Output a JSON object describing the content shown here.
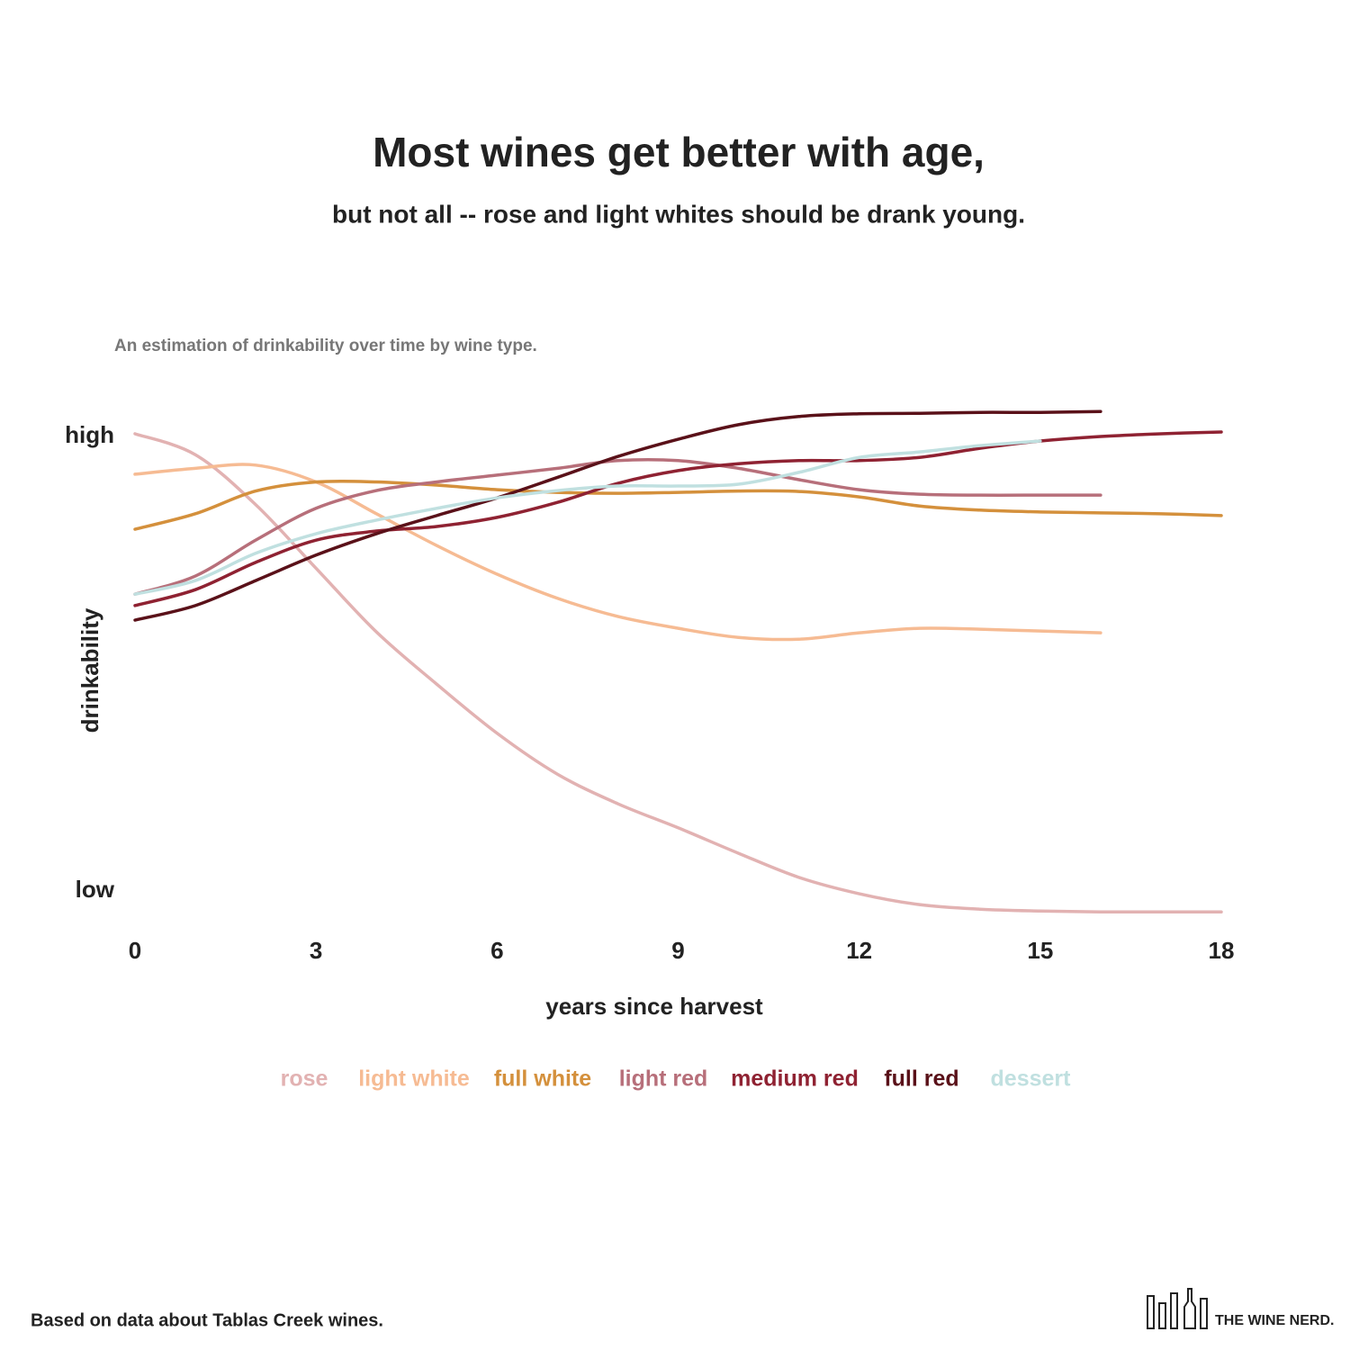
{
  "chart_data": {
    "type": "line",
    "title": "Most wines get better with age,",
    "subtitle": "but not all -- rose and light whites should be drank young.",
    "note": "An estimation of drinkability over time by wine type.",
    "xlabel": "years since harvest",
    "ylabel": "drinkability",
    "x": [
      0,
      1,
      2,
      3,
      4,
      5,
      6,
      7,
      8,
      9,
      10,
      11,
      12,
      13,
      14,
      15,
      16,
      17,
      18
    ],
    "xlim": [
      0,
      18
    ],
    "xticks": [
      0,
      3,
      6,
      9,
      12,
      15,
      18
    ],
    "ylim": [
      -0.8,
      10.8
    ],
    "yticks": [
      {
        "value": 0,
        "label": "low"
      },
      {
        "value": 10,
        "label": "high"
      }
    ],
    "grid": false,
    "legend": "bottom",
    "series": [
      {
        "name": "rose",
        "color": "#e2b2b2",
        "values": [
          10.06,
          9.6,
          8.5,
          7.1,
          5.7,
          4.55,
          3.47,
          2.57,
          1.92,
          1.39,
          0.83,
          0.3,
          -0.06,
          -0.3,
          -0.4,
          -0.44,
          -0.46,
          -0.46,
          -0.46
        ]
      },
      {
        "name": "light white",
        "color": "#f6bb93",
        "values": [
          9.17,
          9.3,
          9.37,
          9.0,
          8.3,
          7.6,
          6.97,
          6.44,
          6.04,
          5.78,
          5.58,
          5.54,
          5.68,
          5.78,
          5.76,
          5.72,
          5.68,
          null,
          null
        ]
      },
      {
        "name": "full white",
        "color": "#d4903c",
        "values": [
          7.96,
          8.3,
          8.8,
          9.0,
          9.0,
          8.93,
          8.83,
          8.77,
          8.75,
          8.77,
          8.8,
          8.79,
          8.67,
          8.47,
          8.38,
          8.34,
          8.32,
          8.3,
          8.26
        ]
      },
      {
        "name": "light red",
        "color": "#b76f7a",
        "values": [
          6.53,
          6.93,
          7.72,
          8.42,
          8.81,
          9.0,
          9.15,
          9.3,
          9.47,
          9.47,
          9.3,
          9.05,
          8.83,
          8.73,
          8.71,
          8.71,
          8.71,
          null,
          null
        ]
      },
      {
        "name": "medium red",
        "color": "#8f2232",
        "values": [
          6.28,
          6.63,
          7.23,
          7.72,
          7.92,
          8.02,
          8.22,
          8.55,
          8.97,
          9.25,
          9.4,
          9.47,
          9.47,
          9.54,
          9.74,
          9.9,
          10.0,
          10.06,
          10.1
        ]
      },
      {
        "name": "full red",
        "color": "#5a1119",
        "values": [
          5.96,
          6.28,
          6.83,
          7.39,
          7.86,
          8.26,
          8.65,
          9.1,
          9.56,
          9.94,
          10.26,
          10.44,
          10.5,
          10.51,
          10.53,
          10.53,
          10.55,
          null,
          null
        ]
      },
      {
        "name": "dessert",
        "color": "#c0e0e0",
        "values": [
          6.53,
          6.83,
          7.43,
          7.86,
          8.16,
          8.42,
          8.65,
          8.81,
          8.91,
          8.91,
          8.95,
          9.21,
          9.54,
          9.66,
          9.8,
          9.9,
          null,
          null,
          null
        ]
      }
    ]
  },
  "footer": {
    "source": "Based on data about Tablas Creek wines.",
    "brand": "THE WINE NERD."
  }
}
